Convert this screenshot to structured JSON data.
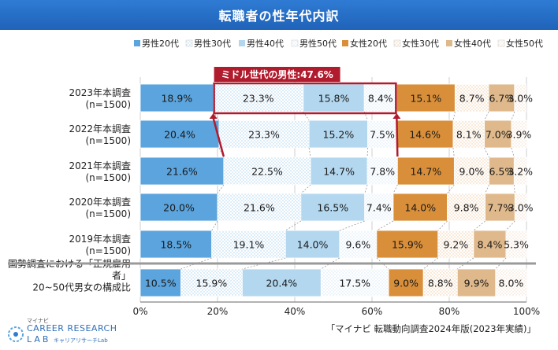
{
  "title": "転職者の性年代内訳",
  "source": "「マイナビ 転職動向調査2024年版(2023年実績)」",
  "logo": {
    "kana": "マイナビ",
    "line1": "CAREER RESEARCH",
    "line2": "LAB",
    "kana2": "キャリアリサーチLab"
  },
  "callout": "ミドル世代の男性:47.6%",
  "chart_data": {
    "type": "bar",
    "orientation": "horizontal-stacked-100",
    "categories": [
      [
        "2023年本調査",
        "(n=1500)"
      ],
      [
        "2022年本調査",
        "(n=1500)"
      ],
      [
        "2021年本調査",
        "(n=1500)"
      ],
      [
        "2020年本調査",
        "(n=1500)"
      ],
      [
        "2019年本調査",
        "(n=1500)"
      ],
      [
        "国勢調査における「正規雇用",
        "者」",
        "20~50代男女の構成比"
      ]
    ],
    "series": [
      {
        "name": "男性20代",
        "color": "#5ba4dd",
        "pattern": "solid",
        "values": [
          18.9,
          20.4,
          21.6,
          20.0,
          18.5,
          10.5
        ]
      },
      {
        "name": "男性30代",
        "color": "#a6d1ee",
        "pattern": "dots",
        "values": [
          23.3,
          23.3,
          22.5,
          21.6,
          19.1,
          15.9
        ]
      },
      {
        "name": "男性40代",
        "color": "#b3d7ef",
        "pattern": "solid",
        "values": [
          15.8,
          15.2,
          14.7,
          16.5,
          14.0,
          20.4
        ]
      },
      {
        "name": "男性50代",
        "color": "#d2e7f6",
        "pattern": "dots",
        "values": [
          8.4,
          7.5,
          7.8,
          7.4,
          9.6,
          17.5
        ]
      },
      {
        "name": "女性20代",
        "color": "#d98f3a",
        "pattern": "solid",
        "values": [
          15.1,
          14.6,
          14.7,
          14.0,
          15.9,
          9.0
        ]
      },
      {
        "name": "女性30代",
        "color": "#efc9a0",
        "pattern": "dots",
        "values": [
          8.7,
          8.1,
          9.0,
          9.8,
          9.2,
          8.8
        ]
      },
      {
        "name": "女性40代",
        "color": "#dfb98b",
        "pattern": "solid",
        "values": [
          6.7,
          7.0,
          6.5,
          7.7,
          8.4,
          9.9
        ]
      },
      {
        "name": "女性50代",
        "color": "#f3ddc8",
        "pattern": "dots",
        "values": [
          3.0,
          3.9,
          3.2,
          3.0,
          5.3,
          8.0
        ]
      }
    ],
    "value_labels": [
      [
        "18.9%",
        "23.3%",
        "15.8%",
        "8.4%",
        "15.1%",
        "8.7%",
        "6.7%",
        "3.0%"
      ],
      [
        "20.4%",
        "23.3%",
        "15.2%",
        "7.5%",
        "14.6%",
        "8.1%",
        "7.0%",
        "3.9%"
      ],
      [
        "21.6%",
        "22.5%",
        "14.7%",
        "7.8%",
        "14.7%",
        "9.0%",
        "6.5%",
        "3.2%"
      ],
      [
        "20.0%",
        "21.6%",
        "16.5%",
        "7.4%",
        "14.0%",
        "9.8%",
        "7.7%",
        "3.0%"
      ],
      [
        "18.5%",
        "19.1%",
        "14.0%",
        "9.6%",
        "15.9%",
        "9.2%",
        "8.4%",
        "5.3%"
      ],
      [
        "10.5%",
        "15.9%",
        "20.4%",
        "17.5%",
        "9.0%",
        "8.8%",
        "9.9%",
        "8.0%"
      ]
    ],
    "xlim": [
      0,
      100
    ],
    "xticks": [
      "0%",
      "20%",
      "40%",
      "60%",
      "80%",
      "100%"
    ],
    "grid": true,
    "legend": "top",
    "highlight": {
      "row": 0,
      "series_from": 1,
      "series_to": 3,
      "color": "#b01c2e"
    }
  }
}
